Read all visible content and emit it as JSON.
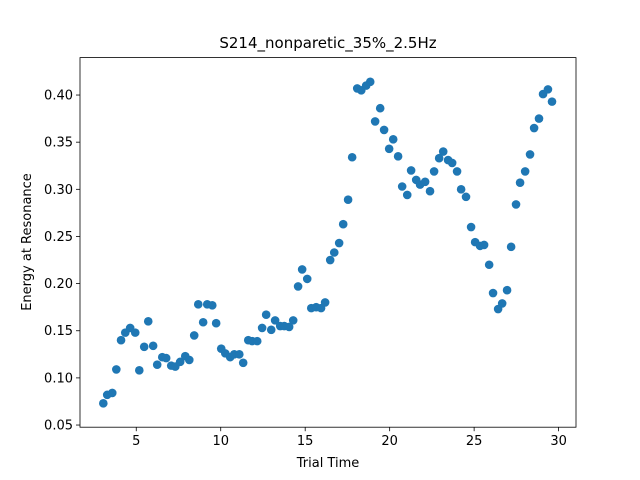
{
  "chart_data": {
    "type": "scatter",
    "title": "S214_nonparetic_35%_2.5Hz",
    "x_label": "Trial Time",
    "y_label": "Energy at Resonance",
    "color": "#1f77b4",
    "xlim": [
      1.67,
      31.03
    ],
    "ylim": [
      0.0477,
      0.4397
    ],
    "xticks": [
      5,
      10,
      15,
      20,
      25,
      30
    ],
    "yticks": [
      0.05,
      {
        "value": 0.1,
        "label": "0.10"
      },
      0.15,
      {
        "value": 0.2,
        "label": "0.20"
      },
      0.25,
      {
        "value": 0.3,
        "label": "0.30"
      },
      0.35,
      {
        "value": 0.4,
        "label": "0.40"
      }
    ],
    "x": [
      3.05,
      3.28,
      3.58,
      3.82,
      4.1,
      4.35,
      4.64,
      4.94,
      5.18,
      5.47,
      5.71,
      6.0,
      6.24,
      6.54,
      6.77,
      7.07,
      7.31,
      7.6,
      7.9,
      8.14,
      8.43,
      8.67,
      8.96,
      9.2,
      9.5,
      9.73,
      10.03,
      10.27,
      10.56,
      10.8,
      11.1,
      11.33,
      11.63,
      11.86,
      12.16,
      12.45,
      12.69,
      12.99,
      13.22,
      13.52,
      13.76,
      14.05,
      14.29,
      14.58,
      14.82,
      15.12,
      15.36,
      15.65,
      15.94,
      16.18,
      16.48,
      16.72,
      17.01,
      17.25,
      17.54,
      17.78,
      18.08,
      18.32,
      18.61,
      18.85,
      19.14,
      19.44,
      19.67,
      19.97,
      20.21,
      20.5,
      20.74,
      21.04,
      21.27,
      21.57,
      21.8,
      22.1,
      22.39,
      22.63,
      22.93,
      23.17,
      23.46,
      23.7,
      23.99,
      24.23,
      24.52,
      24.82,
      25.06,
      25.35,
      25.59,
      25.89,
      26.12,
      26.42,
      26.66,
      26.95,
      27.19,
      27.48,
      27.72,
      28.02,
      28.31,
      28.55,
      28.84,
      29.08,
      29.37,
      29.61
    ],
    "values": [
      0.073,
      0.082,
      0.084,
      0.109,
      0.14,
      0.148,
      0.153,
      0.148,
      0.108,
      0.133,
      0.16,
      0.134,
      0.114,
      0.122,
      0.121,
      0.113,
      0.112,
      0.117,
      0.123,
      0.119,
      0.145,
      0.178,
      0.159,
      0.178,
      0.177,
      0.158,
      0.131,
      0.126,
      0.122,
      0.125,
      0.125,
      0.116,
      0.14,
      0.139,
      0.139,
      0.153,
      0.167,
      0.151,
      0.161,
      0.155,
      0.155,
      0.154,
      0.161,
      0.197,
      0.215,
      0.205,
      0.174,
      0.175,
      0.174,
      0.18,
      0.225,
      0.233,
      0.243,
      0.263,
      0.289,
      0.334,
      0.407,
      0.405,
      0.41,
      0.414,
      0.372,
      0.386,
      0.363,
      0.343,
      0.353,
      0.335,
      0.303,
      0.294,
      0.32,
      0.31,
      0.305,
      0.308,
      0.298,
      0.319,
      0.333,
      0.34,
      0.331,
      0.328,
      0.319,
      0.3,
      0.292,
      0.26,
      0.244,
      0.24,
      0.241,
      0.22,
      0.19,
      0.173,
      0.179,
      0.193,
      0.239,
      0.284,
      0.307,
      0.319,
      0.337,
      0.365,
      0.375,
      0.401,
      0.406,
      0.393
    ]
  }
}
